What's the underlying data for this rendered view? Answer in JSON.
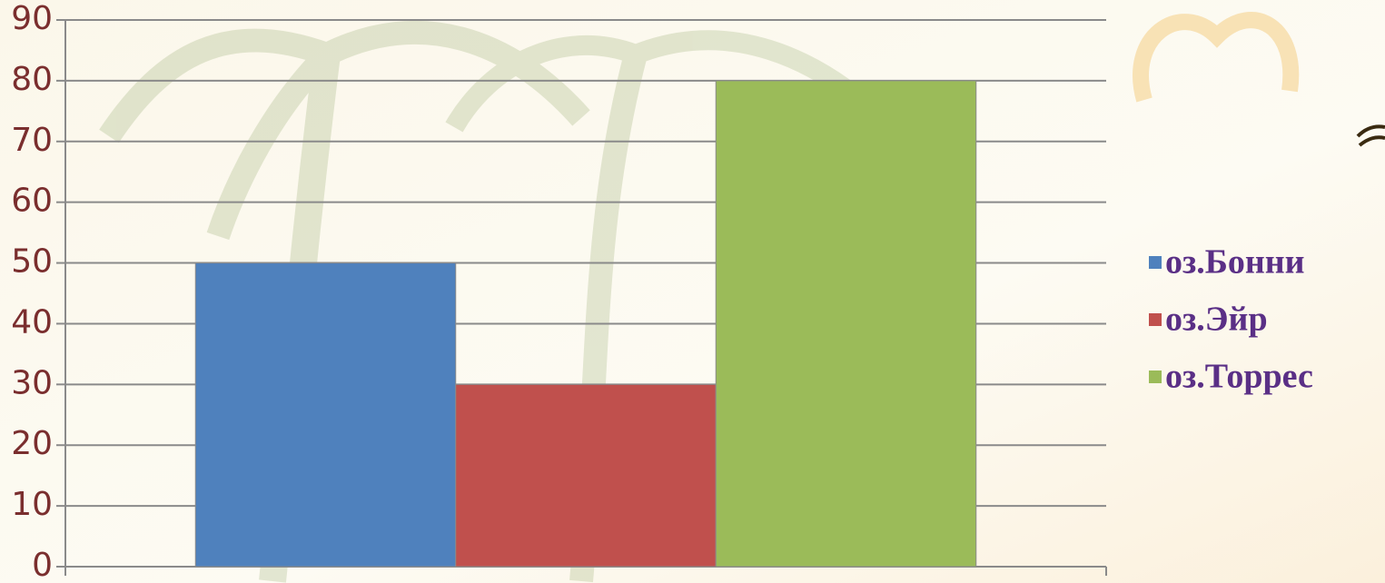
{
  "chart_data": {
    "type": "bar",
    "categories": [
      null
    ],
    "series": [
      {
        "name": "оз.Бонни",
        "color": "#4f81bd",
        "values": [
          50
        ]
      },
      {
        "name": "оз.Эйр",
        "color": "#c0504d",
        "values": [
          30
        ]
      },
      {
        "name": "оз.Торрес",
        "color": "#9bbb59",
        "values": [
          80
        ]
      }
    ],
    "ylim": [
      0,
      90
    ],
    "yticks": [
      0,
      10,
      20,
      30,
      40,
      50,
      60,
      70,
      80,
      90
    ],
    "grid": true,
    "legend": "right"
  }
}
